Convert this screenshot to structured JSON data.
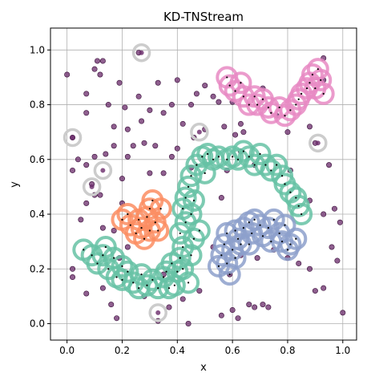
{
  "chart_data": {
    "type": "scatter",
    "title": "KD-TNStream",
    "xlabel": "x",
    "ylabel": "y",
    "xlim": [
      -0.06,
      1.05
    ],
    "ylim": [
      -0.06,
      1.08
    ],
    "xticks": [
      "0.0",
      "0.2",
      "0.4",
      "0.6",
      "0.8",
      "1.0"
    ],
    "yticks": [
      "0.0",
      "0.2",
      "0.4",
      "0.6",
      "0.8",
      "1.0"
    ],
    "grid": true,
    "colors": {
      "noise": "#6a2a6a",
      "noise_ring": "#cccccc",
      "green": "#66c2a5",
      "orange": "#fc8d62",
      "blue": "#8da0cb",
      "pink": "#e78ac3",
      "center_dot": "#000000"
    },
    "noise_points": [
      [
        0.0,
        0.91
      ],
      [
        0.07,
        0.77
      ],
      [
        0.07,
        0.84
      ],
      [
        0.1,
        0.93
      ],
      [
        0.11,
        0.96
      ],
      [
        0.12,
        0.91
      ],
      [
        0.13,
        0.96
      ],
      [
        0.15,
        0.8
      ],
      [
        0.17,
        0.72
      ],
      [
        0.19,
        0.88
      ],
      [
        0.21,
        0.79
      ],
      [
        0.22,
        0.71
      ],
      [
        0.26,
        0.99
      ],
      [
        0.28,
        0.66
      ],
      [
        0.3,
        0.78
      ],
      [
        0.33,
        0.88
      ],
      [
        0.35,
        0.77
      ],
      [
        0.38,
        0.8
      ],
      [
        0.4,
        0.89
      ],
      [
        0.42,
        0.73
      ],
      [
        0.45,
        0.8
      ],
      [
        0.47,
        0.84
      ],
      [
        0.5,
        0.71
      ],
      [
        0.5,
        0.87
      ],
      [
        0.53,
        0.83
      ],
      [
        0.55,
        0.81
      ],
      [
        0.57,
        0.72
      ],
      [
        0.6,
        0.81
      ],
      [
        0.61,
        0.69
      ],
      [
        0.63,
        0.73
      ],
      [
        0.64,
        0.7
      ],
      [
        0.71,
        0.86
      ],
      [
        0.76,
        0.76
      ],
      [
        0.8,
        0.7
      ],
      [
        0.88,
        0.72
      ],
      [
        0.93,
        0.89
      ],
      [
        0.93,
        0.97
      ],
      [
        0.02,
        0.56
      ],
      [
        0.04,
        0.6
      ],
      [
        0.07,
        0.58
      ],
      [
        0.1,
        0.61
      ],
      [
        0.12,
        0.47
      ],
      [
        0.14,
        0.62
      ],
      [
        0.17,
        0.65
      ],
      [
        0.2,
        0.53
      ],
      [
        0.22,
        0.61
      ],
      [
        0.24,
        0.65
      ],
      [
        0.3,
        0.55
      ],
      [
        0.32,
        0.65
      ],
      [
        0.35,
        0.55
      ],
      [
        0.38,
        0.61
      ],
      [
        0.4,
        0.64
      ],
      [
        0.45,
        0.57
      ],
      [
        0.56,
        0.46
      ],
      [
        0.63,
        0.63
      ],
      [
        0.68,
        0.58
      ],
      [
        0.81,
        0.56
      ],
      [
        0.88,
        0.45
      ],
      [
        0.93,
        0.4
      ],
      [
        0.95,
        0.58
      ],
      [
        0.97,
        0.42
      ],
      [
        0.99,
        0.37
      ],
      [
        0.05,
        0.38
      ],
      [
        0.07,
        0.44
      ],
      [
        0.1,
        0.47
      ],
      [
        0.13,
        0.35
      ],
      [
        0.2,
        0.44
      ],
      [
        0.02,
        0.2
      ],
      [
        0.02,
        0.17
      ],
      [
        0.07,
        0.11
      ],
      [
        0.13,
        0.13
      ],
      [
        0.16,
        0.07
      ],
      [
        0.18,
        0.02
      ],
      [
        0.19,
        0.24
      ],
      [
        0.22,
        0.28
      ],
      [
        0.28,
        0.1
      ],
      [
        0.33,
        0.01
      ],
      [
        0.37,
        0.06
      ],
      [
        0.44,
        0.0
      ],
      [
        0.56,
        0.03
      ],
      [
        0.6,
        0.05
      ],
      [
        0.62,
        0.02
      ],
      [
        0.66,
        0.07
      ],
      [
        0.68,
        0.06
      ],
      [
        0.71,
        0.07
      ],
      [
        0.73,
        0.06
      ],
      [
        0.75,
        0.27
      ],
      [
        0.8,
        0.24
      ],
      [
        0.88,
        0.2
      ],
      [
        0.9,
        0.12
      ],
      [
        0.93,
        0.13
      ],
      [
        0.96,
        0.28
      ],
      [
        1.0,
        0.04
      ],
      [
        0.98,
        0.23
      ],
      [
        0.84,
        0.22
      ],
      [
        0.53,
        0.28
      ],
      [
        0.59,
        0.18
      ],
      [
        0.63,
        0.25
      ],
      [
        0.69,
        0.24
      ],
      [
        0.35,
        0.18
      ],
      [
        0.26,
        0.83
      ],
      [
        0.46,
        0.68
      ],
      [
        0.58,
        0.56
      ],
      [
        0.9,
        0.66
      ],
      [
        0.02,
        0.68
      ],
      [
        0.09,
        0.51
      ],
      [
        0.17,
        0.34
      ],
      [
        0.27,
        0.74
      ],
      [
        0.48,
        0.12
      ],
      [
        0.42,
        0.09
      ]
    ],
    "noise_ring_points": [
      [
        0.27,
        0.99
      ],
      [
        0.02,
        0.68
      ],
      [
        0.13,
        0.56
      ],
      [
        0.09,
        0.5
      ],
      [
        0.48,
        0.7
      ],
      [
        0.91,
        0.66
      ],
      [
        0.33,
        0.04
      ]
    ],
    "clusters": {
      "green": [
        [
          0.06,
          0.27
        ],
        [
          0.09,
          0.25
        ],
        [
          0.11,
          0.22
        ],
        [
          0.13,
          0.25
        ],
        [
          0.15,
          0.2
        ],
        [
          0.18,
          0.17
        ],
        [
          0.17,
          0.24
        ],
        [
          0.2,
          0.21
        ],
        [
          0.22,
          0.19
        ],
        [
          0.24,
          0.15
        ],
        [
          0.26,
          0.13
        ],
        [
          0.27,
          0.18
        ],
        [
          0.29,
          0.14
        ],
        [
          0.31,
          0.16
        ],
        [
          0.33,
          0.13
        ],
        [
          0.35,
          0.17
        ],
        [
          0.37,
          0.13
        ],
        [
          0.39,
          0.14
        ],
        [
          0.4,
          0.19
        ],
        [
          0.41,
          0.24
        ],
        [
          0.42,
          0.28
        ],
        [
          0.41,
          0.33
        ],
        [
          0.43,
          0.37
        ],
        [
          0.42,
          0.42
        ],
        [
          0.43,
          0.46
        ],
        [
          0.44,
          0.5
        ],
        [
          0.45,
          0.54
        ],
        [
          0.47,
          0.58
        ],
        [
          0.49,
          0.61
        ],
        [
          0.51,
          0.62
        ],
        [
          0.53,
          0.6
        ],
        [
          0.55,
          0.61
        ],
        [
          0.58,
          0.6
        ],
        [
          0.6,
          0.61
        ],
        [
          0.62,
          0.6
        ],
        [
          0.64,
          0.63
        ],
        [
          0.66,
          0.61
        ],
        [
          0.68,
          0.58
        ],
        [
          0.7,
          0.62
        ],
        [
          0.72,
          0.58
        ],
        [
          0.74,
          0.56
        ],
        [
          0.76,
          0.58
        ],
        [
          0.78,
          0.54
        ],
        [
          0.79,
          0.51
        ],
        [
          0.81,
          0.48
        ],
        [
          0.83,
          0.46
        ],
        [
          0.84,
          0.43
        ],
        [
          0.85,
          0.4
        ],
        [
          0.42,
          0.2
        ],
        [
          0.45,
          0.25
        ],
        [
          0.46,
          0.31
        ],
        [
          0.45,
          0.4
        ],
        [
          0.46,
          0.45
        ],
        [
          0.38,
          0.22
        ],
        [
          0.48,
          0.34
        ],
        [
          0.44,
          0.15
        ],
        [
          0.36,
          0.19
        ],
        [
          0.5,
          0.55
        ],
        [
          0.2,
          0.16
        ],
        [
          0.14,
          0.28
        ]
      ],
      "orange": [
        [
          0.2,
          0.38
        ],
        [
          0.22,
          0.4
        ],
        [
          0.23,
          0.36
        ],
        [
          0.25,
          0.33
        ],
        [
          0.27,
          0.35
        ],
        [
          0.28,
          0.31
        ],
        [
          0.29,
          0.39
        ],
        [
          0.3,
          0.42
        ],
        [
          0.31,
          0.45
        ],
        [
          0.32,
          0.37
        ],
        [
          0.33,
          0.34
        ],
        [
          0.34,
          0.42
        ],
        [
          0.3,
          0.34
        ],
        [
          0.26,
          0.38
        ]
      ],
      "blue": [
        [
          0.55,
          0.21
        ],
        [
          0.56,
          0.25
        ],
        [
          0.57,
          0.29
        ],
        [
          0.58,
          0.33
        ],
        [
          0.59,
          0.18
        ],
        [
          0.6,
          0.27
        ],
        [
          0.61,
          0.34
        ],
        [
          0.62,
          0.31
        ],
        [
          0.63,
          0.29
        ],
        [
          0.64,
          0.35
        ],
        [
          0.66,
          0.37
        ],
        [
          0.67,
          0.33
        ],
        [
          0.68,
          0.38
        ],
        [
          0.7,
          0.36
        ],
        [
          0.71,
          0.32
        ],
        [
          0.73,
          0.35
        ],
        [
          0.75,
          0.38
        ],
        [
          0.77,
          0.33
        ],
        [
          0.78,
          0.3
        ],
        [
          0.79,
          0.36
        ],
        [
          0.8,
          0.27
        ],
        [
          0.81,
          0.29
        ],
        [
          0.83,
          0.31
        ],
        [
          0.58,
          0.22
        ],
        [
          0.61,
          0.24
        ],
        [
          0.74,
          0.3
        ],
        [
          0.66,
          0.29
        ]
      ],
      "pink": [
        [
          0.58,
          0.9
        ],
        [
          0.59,
          0.87
        ],
        [
          0.61,
          0.85
        ],
        [
          0.63,
          0.88
        ],
        [
          0.64,
          0.83
        ],
        [
          0.66,
          0.8
        ],
        [
          0.68,
          0.83
        ],
        [
          0.69,
          0.8
        ],
        [
          0.71,
          0.82
        ],
        [
          0.73,
          0.79
        ],
        [
          0.74,
          0.77
        ],
        [
          0.77,
          0.79
        ],
        [
          0.79,
          0.76
        ],
        [
          0.81,
          0.78
        ],
        [
          0.83,
          0.8
        ],
        [
          0.84,
          0.82
        ],
        [
          0.85,
          0.84
        ],
        [
          0.87,
          0.86
        ],
        [
          0.88,
          0.88
        ],
        [
          0.89,
          0.91
        ],
        [
          0.9,
          0.86
        ],
        [
          0.92,
          0.89
        ],
        [
          0.93,
          0.84
        ],
        [
          0.91,
          0.93
        ]
      ]
    }
  }
}
